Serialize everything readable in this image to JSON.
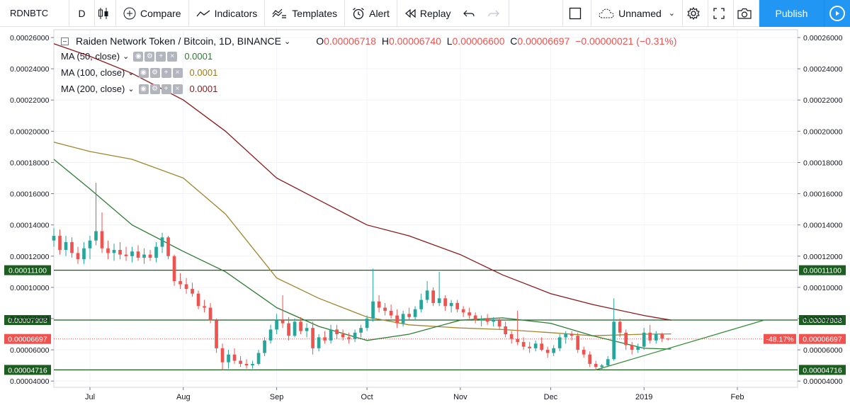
{
  "toolbar": {
    "symbol": "RDNBTC",
    "interval": "D",
    "compare": "Compare",
    "indicators": "Indicators",
    "templates": "Templates",
    "alert": "Alert",
    "replay": "Replay",
    "layout_name": "Unnamed",
    "publish": "Publish"
  },
  "legend": {
    "title": "Raiden Network Token / Bitcoin, 1D, BINANCE",
    "open_label": "O",
    "open": "0.00006718",
    "high_label": "H",
    "high": "0.00006740",
    "low_label": "L",
    "low": "0.00006600",
    "close_label": "C",
    "close": "0.00006697",
    "change": "−0.00000021 (−0.31%)",
    "mas": [
      {
        "name": "MA (50, close)",
        "value": "0.0001",
        "color": "#2e7d32"
      },
      {
        "name": "MA (100, close)",
        "value": "0.0001",
        "color": "#9a7b1c"
      },
      {
        "name": "MA (200, close)",
        "value": "0.0001",
        "color": "#8b1a1a"
      }
    ]
  },
  "colors": {
    "up": "#26a69a",
    "down": "#ef5350",
    "ma50": "#2e7d32",
    "ma100": "#a0852c",
    "ma200": "#8b1a1a",
    "hline": "#1b5e20",
    "trend": "#388e3c",
    "accent": "#2196f3"
  },
  "chart_data": {
    "type": "candlestick",
    "ylim": [
      3.6e-05,
      0.000265
    ],
    "y_ticks": [
      "0.00026000",
      "0.00024000",
      "0.00022000",
      "0.00020000",
      "0.00018000",
      "0.00016000",
      "0.00014000",
      "0.00012000",
      "0.00010000",
      "0.00008000",
      "0.00006000",
      "0.00004000"
    ],
    "x_ticks": [
      {
        "label": "Jul",
        "date": "2018-07-01"
      },
      {
        "label": "Aug",
        "date": "2018-08-01"
      },
      {
        "label": "Sep",
        "date": "2018-09-01"
      },
      {
        "label": "Oct",
        "date": "2018-10-01"
      },
      {
        "label": "Nov",
        "date": "2018-11-01"
      },
      {
        "label": "Dec",
        "date": "2018-12-01"
      },
      {
        "label": "2019",
        "date": "2019-01-01"
      },
      {
        "label": "Feb",
        "date": "2019-02-01"
      }
    ],
    "x_range": [
      "2018-06-19",
      "2019-02-21"
    ],
    "horizontal_levels": [
      {
        "value": 0.000111,
        "label": "0.00011100"
      },
      {
        "value": 7.908e-05,
        "label": "0.00007908"
      },
      {
        "value": 4.716e-05,
        "label": "0.00004716"
      }
    ],
    "last_price": {
      "value": 6.697e-05,
      "label": "0.00006697",
      "change_label": "-48.17%"
    },
    "trendline": [
      {
        "date": "2018-12-16",
        "value": 4.716e-05
      },
      {
        "date": "2019-02-10",
        "value": 7.908e-05
      }
    ],
    "ma50": [
      {
        "date": "2018-06-19",
        "value": 0.000182
      },
      {
        "date": "2018-07-01",
        "value": 0.000163
      },
      {
        "date": "2018-07-15",
        "value": 0.00014
      },
      {
        "date": "2018-08-01",
        "value": 0.000123
      },
      {
        "date": "2018-08-15",
        "value": 0.00011
      },
      {
        "date": "2018-09-01",
        "value": 8.7e-05
      },
      {
        "date": "2018-09-15",
        "value": 7.5e-05
      },
      {
        "date": "2018-10-01",
        "value": 6.6e-05
      },
      {
        "date": "2018-10-15",
        "value": 7e-05
      },
      {
        "date": "2018-11-01",
        "value": 7.9e-05
      },
      {
        "date": "2018-11-15",
        "value": 8.05e-05
      },
      {
        "date": "2018-12-01",
        "value": 7.7e-05
      },
      {
        "date": "2018-12-15",
        "value": 6.9e-05
      },
      {
        "date": "2019-01-01",
        "value": 6.1e-05
      },
      {
        "date": "2019-01-10",
        "value": 6.05e-05
      }
    ],
    "ma100": [
      {
        "date": "2018-06-19",
        "value": 0.000193
      },
      {
        "date": "2018-07-01",
        "value": 0.000187
      },
      {
        "date": "2018-07-15",
        "value": 0.000182
      },
      {
        "date": "2018-08-01",
        "value": 0.00017
      },
      {
        "date": "2018-08-15",
        "value": 0.000147
      },
      {
        "date": "2018-09-01",
        "value": 0.000106
      },
      {
        "date": "2018-09-15",
        "value": 9.3e-05
      },
      {
        "date": "2018-10-01",
        "value": 8.1e-05
      },
      {
        "date": "2018-10-15",
        "value": 7.6e-05
      },
      {
        "date": "2018-11-01",
        "value": 7.4e-05
      },
      {
        "date": "2018-11-15",
        "value": 7.3e-05
      },
      {
        "date": "2018-12-01",
        "value": 7.1e-05
      },
      {
        "date": "2018-12-15",
        "value": 6.9e-05
      },
      {
        "date": "2019-01-01",
        "value": 7e-05
      },
      {
        "date": "2019-01-10",
        "value": 7.02e-05
      }
    ],
    "ma200": [
      {
        "date": "2018-06-19",
        "value": 0.000256
      },
      {
        "date": "2018-07-01",
        "value": 0.000248
      },
      {
        "date": "2018-07-15",
        "value": 0.000237
      },
      {
        "date": "2018-08-01",
        "value": 0.00022
      },
      {
        "date": "2018-08-15",
        "value": 0.0002
      },
      {
        "date": "2018-09-01",
        "value": 0.00017
      },
      {
        "date": "2018-09-15",
        "value": 0.000156
      },
      {
        "date": "2018-10-01",
        "value": 0.00014
      },
      {
        "date": "2018-10-15",
        "value": 0.000133
      },
      {
        "date": "2018-11-01",
        "value": 0.000121
      },
      {
        "date": "2018-11-15",
        "value": 0.000108
      },
      {
        "date": "2018-12-01",
        "value": 9.6e-05
      },
      {
        "date": "2018-12-15",
        "value": 8.9e-05
      },
      {
        "date": "2019-01-01",
        "value": 8.2e-05
      },
      {
        "date": "2019-01-10",
        "value": 7.9e-05
      }
    ],
    "candles": [
      {
        "date": "2018-06-19",
        "o": 0.00013,
        "h": 0.000138,
        "l": 0.000126,
        "c": 0.000133
      },
      {
        "date": "2018-06-21",
        "o": 0.000133,
        "h": 0.000137,
        "l": 0.000121,
        "c": 0.000124
      },
      {
        "date": "2018-06-23",
        "o": 0.000124,
        "h": 0.000133,
        "l": 0.00012,
        "c": 0.000129
      },
      {
        "date": "2018-06-25",
        "o": 0.000129,
        "h": 0.000132,
        "l": 0.000119,
        "c": 0.000122
      },
      {
        "date": "2018-06-27",
        "o": 0.000122,
        "h": 0.000126,
        "l": 0.000115,
        "c": 0.000118
      },
      {
        "date": "2018-06-29",
        "o": 0.000118,
        "h": 0.000129,
        "l": 0.000115,
        "c": 0.000125
      },
      {
        "date": "2018-07-01",
        "o": 0.000125,
        "h": 0.000133,
        "l": 0.000118,
        "c": 0.00013
      },
      {
        "date": "2018-07-03",
        "o": 0.00013,
        "h": 0.000167,
        "l": 0.000127,
        "c": 0.000136
      },
      {
        "date": "2018-07-05",
        "o": 0.000136,
        "h": 0.000148,
        "l": 0.000122,
        "c": 0.000125
      },
      {
        "date": "2018-07-07",
        "o": 0.000125,
        "h": 0.00013,
        "l": 0.000118,
        "c": 0.000122
      },
      {
        "date": "2018-07-09",
        "o": 0.000122,
        "h": 0.000128,
        "l": 0.000117,
        "c": 0.000124
      },
      {
        "date": "2018-07-11",
        "o": 0.000124,
        "h": 0.000129,
        "l": 0.000118,
        "c": 0.000121
      },
      {
        "date": "2018-07-13",
        "o": 0.000121,
        "h": 0.000126,
        "l": 0.000117,
        "c": 0.00012
      },
      {
        "date": "2018-07-15",
        "o": 0.00012,
        "h": 0.000126,
        "l": 0.000116,
        "c": 0.000123
      },
      {
        "date": "2018-07-17",
        "o": 0.000123,
        "h": 0.000127,
        "l": 0.000117,
        "c": 0.000119
      },
      {
        "date": "2018-07-19",
        "o": 0.000119,
        "h": 0.000125,
        "l": 0.000115,
        "c": 0.000121
      },
      {
        "date": "2018-07-21",
        "o": 0.000121,
        "h": 0.000124,
        "l": 0.000117,
        "c": 0.000119
      },
      {
        "date": "2018-07-23",
        "o": 0.000119,
        "h": 0.000129,
        "l": 0.000116,
        "c": 0.000126
      },
      {
        "date": "2018-07-25",
        "o": 0.000126,
        "h": 0.000135,
        "l": 0.000122,
        "c": 0.000132
      },
      {
        "date": "2018-07-27",
        "o": 0.000132,
        "h": 0.000133,
        "l": 0.000118,
        "c": 0.00012
      },
      {
        "date": "2018-07-29",
        "o": 0.00012,
        "h": 0.000121,
        "l": 0.000101,
        "c": 0.000104
      },
      {
        "date": "2018-07-31",
        "o": 0.000104,
        "h": 0.000109,
        "l": 9.9e-05,
        "c": 0.000102
      },
      {
        "date": "2018-08-02",
        "o": 0.000102,
        "h": 0.000106,
        "l": 9.6e-05,
        "c": 9.9e-05
      },
      {
        "date": "2018-08-04",
        "o": 9.9e-05,
        "h": 0.000103,
        "l": 9.4e-05,
        "c": 9.6e-05
      },
      {
        "date": "2018-08-06",
        "o": 9.6e-05,
        "h": 9.8e-05,
        "l": 8.6e-05,
        "c": 8.8e-05
      },
      {
        "date": "2018-08-08",
        "o": 8.8e-05,
        "h": 9.2e-05,
        "l": 8.4e-05,
        "c": 8.7e-05
      },
      {
        "date": "2018-08-10",
        "o": 8.7e-05,
        "h": 9e-05,
        "l": 7.7e-05,
        "c": 7.9e-05
      },
      {
        "date": "2018-08-12",
        "o": 7.9e-05,
        "h": 8e-05,
        "l": 5.8e-05,
        "c": 6.1e-05
      },
      {
        "date": "2018-08-14",
        "o": 6.1e-05,
        "h": 6.4e-05,
        "l": 4.7e-05,
        "c": 5.2e-05
      },
      {
        "date": "2018-08-16",
        "o": 5.2e-05,
        "h": 6e-05,
        "l": 4.8e-05,
        "c": 5.7e-05
      },
      {
        "date": "2018-08-18",
        "o": 5.7e-05,
        "h": 6.1e-05,
        "l": 5.1e-05,
        "c": 5.3e-05
      },
      {
        "date": "2018-08-20",
        "o": 5.3e-05,
        "h": 5.6e-05,
        "l": 4.9e-05,
        "c": 5.1e-05
      },
      {
        "date": "2018-08-22",
        "o": 5.1e-05,
        "h": 5.4e-05,
        "l": 4.8e-05,
        "c": 5e-05
      },
      {
        "date": "2018-08-24",
        "o": 5e-05,
        "h": 5.3e-05,
        "l": 4.8e-05,
        "c": 5.1e-05
      },
      {
        "date": "2018-08-26",
        "o": 5.1e-05,
        "h": 6e-05,
        "l": 5e-05,
        "c": 5.8e-05
      },
      {
        "date": "2018-08-28",
        "o": 5.8e-05,
        "h": 6.8e-05,
        "l": 5.6e-05,
        "c": 6.6e-05
      },
      {
        "date": "2018-08-30",
        "o": 6.6e-05,
        "h": 7.6e-05,
        "l": 6.4e-05,
        "c": 7.3e-05
      },
      {
        "date": "2018-09-01",
        "o": 7.3e-05,
        "h": 8.3e-05,
        "l": 7e-05,
        "c": 7.9e-05
      },
      {
        "date": "2018-09-03",
        "o": 7.9e-05,
        "h": 9.5e-05,
        "l": 7.4e-05,
        "c": 7.7e-05
      },
      {
        "date": "2018-09-05",
        "o": 7.7e-05,
        "h": 8.1e-05,
        "l": 6.6e-05,
        "c": 6.9e-05
      },
      {
        "date": "2018-09-07",
        "o": 6.9e-05,
        "h": 8e-05,
        "l": 6.8e-05,
        "c": 7.8e-05
      },
      {
        "date": "2018-09-09",
        "o": 7.8e-05,
        "h": 8.1e-05,
        "l": 7e-05,
        "c": 7.2e-05
      },
      {
        "date": "2018-09-11",
        "o": 7.2e-05,
        "h": 7.7e-05,
        "l": 6.8e-05,
        "c": 7.4e-05
      },
      {
        "date": "2018-09-13",
        "o": 7.4e-05,
        "h": 7.8e-05,
        "l": 5.7e-05,
        "c": 6.1e-05
      },
      {
        "date": "2018-09-15",
        "o": 6.1e-05,
        "h": 7e-05,
        "l": 5.9e-05,
        "c": 6.8e-05
      },
      {
        "date": "2018-09-17",
        "o": 6.8e-05,
        "h": 7.2e-05,
        "l": 6.4e-05,
        "c": 6.6e-05
      },
      {
        "date": "2018-09-19",
        "o": 6.6e-05,
        "h": 7.6e-05,
        "l": 6.4e-05,
        "c": 7.3e-05
      },
      {
        "date": "2018-09-21",
        "o": 7.3e-05,
        "h": 7.6e-05,
        "l": 6.7e-05,
        "c": 7e-05
      },
      {
        "date": "2018-09-23",
        "o": 7e-05,
        "h": 7.3e-05,
        "l": 6.6e-05,
        "c": 6.8e-05
      },
      {
        "date": "2018-09-25",
        "o": 6.8e-05,
        "h": 7.1e-05,
        "l": 6.4e-05,
        "c": 6.7e-05
      },
      {
        "date": "2018-09-27",
        "o": 6.7e-05,
        "h": 7.3e-05,
        "l": 6.5e-05,
        "c": 7.1e-05
      },
      {
        "date": "2018-09-29",
        "o": 7.1e-05,
        "h": 7.6e-05,
        "l": 6.8e-05,
        "c": 7.4e-05
      },
      {
        "date": "2018-10-01",
        "o": 7.4e-05,
        "h": 8.2e-05,
        "l": 7.2e-05,
        "c": 8e-05
      },
      {
        "date": "2018-10-03",
        "o": 8e-05,
        "h": 0.000112,
        "l": 7.8e-05,
        "c": 9.1e-05
      },
      {
        "date": "2018-10-05",
        "o": 9.1e-05,
        "h": 9.5e-05,
        "l": 8.4e-05,
        "c": 8.7e-05
      },
      {
        "date": "2018-10-07",
        "o": 8.7e-05,
        "h": 9e-05,
        "l": 8.2e-05,
        "c": 8.5e-05
      },
      {
        "date": "2018-10-09",
        "o": 8.5e-05,
        "h": 8.9e-05,
        "l": 8e-05,
        "c": 8.2e-05
      },
      {
        "date": "2018-10-11",
        "o": 8.2e-05,
        "h": 8.6e-05,
        "l": 7.4e-05,
        "c": 7.7e-05
      },
      {
        "date": "2018-10-13",
        "o": 7.7e-05,
        "h": 8.5e-05,
        "l": 7.5e-05,
        "c": 8.3e-05
      },
      {
        "date": "2018-10-15",
        "o": 8.3e-05,
        "h": 8.7e-05,
        "l": 7.9e-05,
        "c": 8.1e-05
      },
      {
        "date": "2018-10-17",
        "o": 8.1e-05,
        "h": 8.8e-05,
        "l": 7.9e-05,
        "c": 8.6e-05
      },
      {
        "date": "2018-10-19",
        "o": 8.6e-05,
        "h": 9.6e-05,
        "l": 8.4e-05,
        "c": 9.2e-05
      },
      {
        "date": "2018-10-21",
        "o": 9.2e-05,
        "h": 0.000104,
        "l": 9e-05,
        "c": 9.8e-05
      },
      {
        "date": "2018-10-23",
        "o": 9.8e-05,
        "h": 0.0001,
        "l": 8.8e-05,
        "c": 9e-05
      },
      {
        "date": "2018-10-25",
        "o": 9e-05,
        "h": 0.00011,
        "l": 8.8e-05,
        "c": 9.3e-05
      },
      {
        "date": "2018-10-27",
        "o": 9.3e-05,
        "h": 9.5e-05,
        "l": 8.5e-05,
        "c": 8.8e-05
      },
      {
        "date": "2018-10-29",
        "o": 8.8e-05,
        "h": 9.2e-05,
        "l": 8.4e-05,
        "c": 9e-05
      },
      {
        "date": "2018-10-31",
        "o": 9e-05,
        "h": 9.2e-05,
        "l": 8.4e-05,
        "c": 8.6e-05
      },
      {
        "date": "2018-11-02",
        "o": 8.6e-05,
        "h": 8.8e-05,
        "l": 8.1e-05,
        "c": 8.4e-05
      },
      {
        "date": "2018-11-04",
        "o": 8.4e-05,
        "h": 8.7e-05,
        "l": 8e-05,
        "c": 8.2e-05
      },
      {
        "date": "2018-11-06",
        "o": 8.2e-05,
        "h": 8.4e-05,
        "l": 7.7e-05,
        "c": 7.9e-05
      },
      {
        "date": "2018-11-08",
        "o": 7.9e-05,
        "h": 8.2e-05,
        "l": 7.5e-05,
        "c": 8e-05
      },
      {
        "date": "2018-11-10",
        "o": 8e-05,
        "h": 8.3e-05,
        "l": 7.6e-05,
        "c": 7.8e-05
      },
      {
        "date": "2018-11-12",
        "o": 7.8e-05,
        "h": 8.1e-05,
        "l": 7.5e-05,
        "c": 7.9e-05
      },
      {
        "date": "2018-11-14",
        "o": 7.9e-05,
        "h": 8e-05,
        "l": 7.3e-05,
        "c": 7.5e-05
      },
      {
        "date": "2018-11-16",
        "o": 7.5e-05,
        "h": 7.8e-05,
        "l": 6.8e-05,
        "c": 7e-05
      },
      {
        "date": "2018-11-18",
        "o": 7e-05,
        "h": 7.2e-05,
        "l": 6.4e-05,
        "c": 6.7e-05
      },
      {
        "date": "2018-11-20",
        "o": 6.7e-05,
        "h": 8.5e-05,
        "l": 6.3e-05,
        "c": 6.5e-05
      },
      {
        "date": "2018-11-22",
        "o": 6.5e-05,
        "h": 6.8e-05,
        "l": 6e-05,
        "c": 6.2e-05
      },
      {
        "date": "2018-11-24",
        "o": 6.2e-05,
        "h": 6.5e-05,
        "l": 5.8e-05,
        "c": 6.1e-05
      },
      {
        "date": "2018-11-26",
        "o": 6.1e-05,
        "h": 6.6e-05,
        "l": 5.9e-05,
        "c": 6.4e-05
      },
      {
        "date": "2018-11-28",
        "o": 6.4e-05,
        "h": 6.8e-05,
        "l": 5.9e-05,
        "c": 6e-05
      },
      {
        "date": "2018-11-30",
        "o": 6e-05,
        "h": 6.2e-05,
        "l": 5.5e-05,
        "c": 5.8e-05
      },
      {
        "date": "2018-12-02",
        "o": 5.8e-05,
        "h": 6.3e-05,
        "l": 5.6e-05,
        "c": 6.1e-05
      },
      {
        "date": "2018-12-04",
        "o": 6.1e-05,
        "h": 7e-05,
        "l": 5.9e-05,
        "c": 6.8e-05
      },
      {
        "date": "2018-12-06",
        "o": 6.8e-05,
        "h": 7.2e-05,
        "l": 6.4e-05,
        "c": 7e-05
      },
      {
        "date": "2018-12-08",
        "o": 7e-05,
        "h": 7.2e-05,
        "l": 6.6e-05,
        "c": 6.9e-05
      },
      {
        "date": "2018-12-10",
        "o": 6.9e-05,
        "h": 7.1e-05,
        "l": 5.8e-05,
        "c": 6e-05
      },
      {
        "date": "2018-12-12",
        "o": 6e-05,
        "h": 6.2e-05,
        "l": 5.5e-05,
        "c": 5.7e-05
      },
      {
        "date": "2018-12-14",
        "o": 5.7e-05,
        "h": 5.9e-05,
        "l": 4.9e-05,
        "c": 5.1e-05
      },
      {
        "date": "2018-12-16",
        "o": 5.1e-05,
        "h": 5.3e-05,
        "l": 4.7e-05,
        "c": 4.9e-05
      },
      {
        "date": "2018-12-18",
        "o": 4.9e-05,
        "h": 5.1e-05,
        "l": 4.7e-05,
        "c": 5e-05
      },
      {
        "date": "2018-12-20",
        "o": 5e-05,
        "h": 5.6e-05,
        "l": 4.9e-05,
        "c": 5.4e-05
      },
      {
        "date": "2018-12-22",
        "o": 5.4e-05,
        "h": 9.3e-05,
        "l": 5.3e-05,
        "c": 7.8e-05
      },
      {
        "date": "2018-12-24",
        "o": 7.8e-05,
        "h": 8e-05,
        "l": 6.8e-05,
        "c": 7.1e-05
      },
      {
        "date": "2018-12-26",
        "o": 7.1e-05,
        "h": 7.3e-05,
        "l": 6e-05,
        "c": 6.3e-05
      },
      {
        "date": "2018-12-28",
        "o": 6.3e-05,
        "h": 6.5e-05,
        "l": 5.7e-05,
        "c": 6e-05
      },
      {
        "date": "2018-12-30",
        "o": 6e-05,
        "h": 6.4e-05,
        "l": 5.8e-05,
        "c": 6.2e-05
      },
      {
        "date": "2019-01-01",
        "o": 6.2e-05,
        "h": 7.4e-05,
        "l": 6e-05,
        "c": 7.1e-05
      },
      {
        "date": "2019-01-03",
        "o": 7.1e-05,
        "h": 7.6e-05,
        "l": 6.4e-05,
        "c": 6.6e-05
      },
      {
        "date": "2019-01-05",
        "o": 6.6e-05,
        "h": 7.2e-05,
        "l": 6.4e-05,
        "c": 7e-05
      },
      {
        "date": "2019-01-07",
        "o": 7e-05,
        "h": 7.1e-05,
        "l": 6.5e-05,
        "c": 6.72e-05
      },
      {
        "date": "2019-01-09",
        "o": 6.718e-05,
        "h": 6.74e-05,
        "l": 6.6e-05,
        "c": 6.697e-05
      }
    ]
  }
}
